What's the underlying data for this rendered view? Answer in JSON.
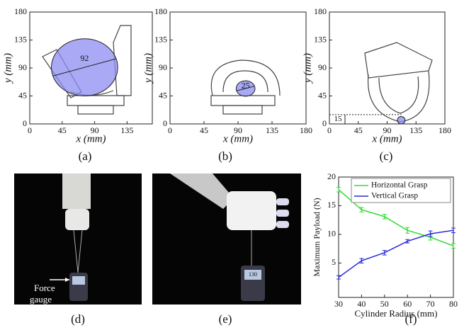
{
  "panel_labels": [
    "(a)",
    "(b)",
    "(c)",
    "(d)",
    "(e)",
    "(f)"
  ],
  "photo_text": {
    "force_gauge": [
      "Force",
      "gauge"
    ],
    "display": "130"
  },
  "chart_data": [
    {
      "type": "circle",
      "xlabel": "x (mm)",
      "ylabel": "y (mm)",
      "xlim": [
        0,
        170
      ],
      "ylim": [
        0,
        180
      ],
      "xticks": [
        0,
        45,
        90,
        135
      ],
      "yticks": [
        0,
        45,
        90,
        135,
        180
      ],
      "color": "#8c8cf2",
      "circle": {
        "x": 76,
        "y": 91,
        "d": 92
      }
    },
    {
      "type": "circle",
      "xlabel": "x (mm)",
      "ylabel": "y (mm)",
      "xlim": [
        0,
        180
      ],
      "ylim": [
        0,
        180
      ],
      "xticks": [
        0,
        45,
        90,
        135,
        180
      ],
      "yticks": [
        0,
        45,
        90,
        135,
        180
      ],
      "color": "#8c8cf2",
      "circle": {
        "x": 100,
        "y": 57,
        "d": 25
      }
    },
    {
      "type": "circle",
      "xlabel": "x (mm)",
      "ylabel": "y (mm)",
      "xlim": [
        0,
        180
      ],
      "ylim": [
        0,
        180
      ],
      "xticks": [
        0,
        45,
        90,
        135,
        180
      ],
      "yticks": [
        0,
        45,
        90,
        135,
        180
      ],
      "color": "#8c8cf2",
      "circle": {
        "x": 112,
        "y": 6,
        "d": 12
      },
      "height": 15
    },
    {
      "type": "line",
      "xlabel": "Cylinder Radius (mm)",
      "ylabel": "Maximum Payload (N)",
      "xlim": [
        30,
        80
      ],
      "ylim": [
        -1,
        20
      ],
      "xticks": [
        30,
        40,
        50,
        60,
        70,
        80
      ],
      "yticks": [
        5,
        10,
        15,
        20
      ],
      "legend": "upper right",
      "x": [
        30,
        40,
        50,
        60,
        70,
        80
      ],
      "series": [
        {
          "name": "Horizontal Grasp",
          "color": "#33dd33",
          "values": [
            17.8,
            14.3,
            13.1,
            10.7,
            9.5,
            8.0
          ],
          "errors": [
            0.4,
            0.4,
            0.4,
            0.5,
            0.5,
            0.4
          ]
        },
        {
          "name": "Vertical Grasp",
          "color": "#2a2ad8",
          "values": [
            2.5,
            5.4,
            6.8,
            8.8,
            10.1,
            10.7
          ],
          "errors": [
            0.3,
            0.4,
            0.4,
            0.3,
            0.5,
            0.4
          ]
        }
      ]
    }
  ]
}
